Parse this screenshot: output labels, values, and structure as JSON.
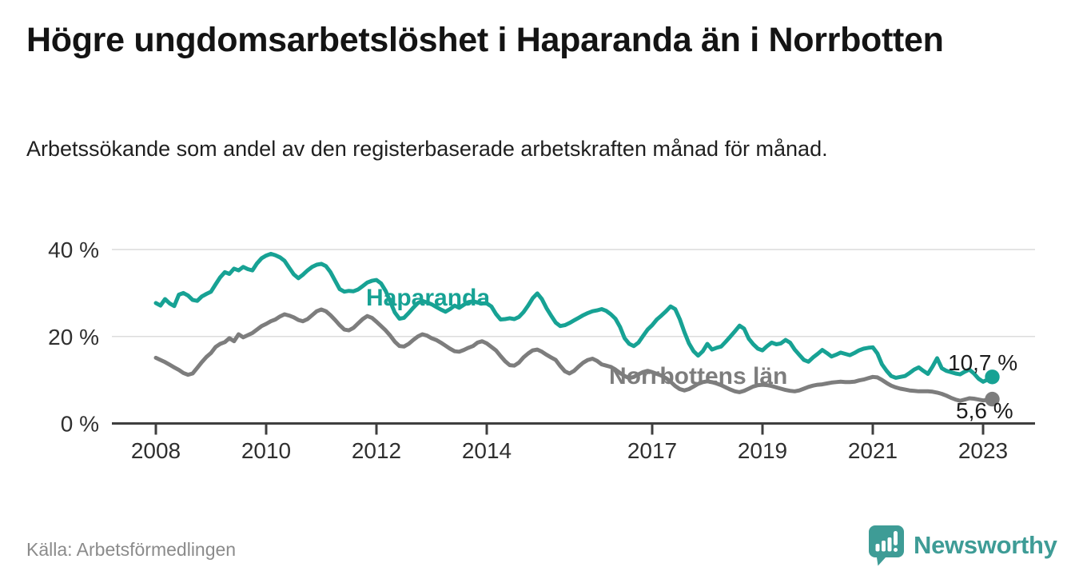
{
  "header": {
    "title": "Högre ungdomsarbetslöshet i Haparanda än i Norrbotten",
    "subtitle": "Arbetssökande som andel av den registerbaserade arbetskraften månad för månad."
  },
  "chart_data": {
    "type": "line",
    "unit": "%",
    "frequency": "monthly",
    "start": "2008-01",
    "end": "2023-03",
    "ylim": [
      0,
      44
    ],
    "grid": "horizontal",
    "y_axis": {
      "ticks": [
        {
          "value": 0,
          "label": "0 %"
        },
        {
          "value": 20,
          "label": "20 %"
        },
        {
          "value": 40,
          "label": "40 %"
        }
      ]
    },
    "x_axis": {
      "ticks": [
        {
          "year": 2008,
          "label": "2008"
        },
        {
          "year": 2010,
          "label": "2010"
        },
        {
          "year": 2012,
          "label": "2012"
        },
        {
          "year": 2014,
          "label": "2014"
        },
        {
          "year": 2017,
          "label": "2017"
        },
        {
          "year": 2019,
          "label": "2019"
        },
        {
          "year": 2021,
          "label": "2021"
        },
        {
          "year": 2023,
          "label": "2023"
        }
      ]
    },
    "series": [
      {
        "name": "Haparanda",
        "color": "#17a294",
        "end_label": "10,7 %",
        "last_value": 10.7,
        "values": [
          27.7,
          27.1,
          28.6,
          27.6,
          27.0,
          29.6,
          30.0,
          29.4,
          28.4,
          28.2,
          29.2,
          29.8,
          30.3,
          32.0,
          33.6,
          34.8,
          34.4,
          35.6,
          35.2,
          36.0,
          35.5,
          35.2,
          36.8,
          38.0,
          38.6,
          39.0,
          38.7,
          38.2,
          37.4,
          35.8,
          34.3,
          33.4,
          34.2,
          35.2,
          36.0,
          36.5,
          36.7,
          36.2,
          34.8,
          32.8,
          30.9,
          30.3,
          30.5,
          30.4,
          30.8,
          31.6,
          32.4,
          32.8,
          33.0,
          32.2,
          30.5,
          28.0,
          25.5,
          24.1,
          24.3,
          25.4,
          26.6,
          27.7,
          28.2,
          27.8,
          27.4,
          26.8,
          26.2,
          25.7,
          26.3,
          27.1,
          26.6,
          27.3,
          27.9,
          28.1,
          27.8,
          27.6,
          27.6,
          26.9,
          25.2,
          23.9,
          24.0,
          24.2,
          24.0,
          24.5,
          25.6,
          27.1,
          28.8,
          29.9,
          28.6,
          26.5,
          24.8,
          23.2,
          22.4,
          22.6,
          23.1,
          23.7,
          24.3,
          24.9,
          25.4,
          25.8,
          26.0,
          26.3,
          25.9,
          25.1,
          24.1,
          22.2,
          19.6,
          18.3,
          17.8,
          18.6,
          20.1,
          21.6,
          22.6,
          23.9,
          24.8,
          25.8,
          26.9,
          26.3,
          24.0,
          21.0,
          18.4,
          16.6,
          15.6,
          16.6,
          18.3,
          17.0,
          17.4,
          17.7,
          18.8,
          20.0,
          21.2,
          22.5,
          21.8,
          19.5,
          18.2,
          17.2,
          16.8,
          17.8,
          18.6,
          18.2,
          18.4,
          19.2,
          18.6,
          17.0,
          15.8,
          14.6,
          14.2,
          15.2,
          16.0,
          16.9,
          16.2,
          15.4,
          15.8,
          16.3,
          16.0,
          15.7,
          16.2,
          16.8,
          17.2,
          17.4,
          17.5,
          16.1,
          13.6,
          12.1,
          10.9,
          10.5,
          10.7,
          10.9,
          11.6,
          12.4,
          12.9,
          12.1,
          11.4,
          13.1,
          15.0,
          12.7,
          12.1,
          11.8,
          11.5,
          11.3,
          11.9,
          12.4,
          11.5,
          10.3,
          9.6,
          10.1,
          10.7
        ]
      },
      {
        "name": "Norrbottens län",
        "color": "#7d7d7d",
        "end_label": "5,6 %",
        "last_value": 5.6,
        "values": [
          15.1,
          14.6,
          14.1,
          13.5,
          12.9,
          12.3,
          11.6,
          11.2,
          11.5,
          12.8,
          14.1,
          15.3,
          16.2,
          17.6,
          18.3,
          18.7,
          19.6,
          18.9,
          20.5,
          19.8,
          20.3,
          20.8,
          21.6,
          22.4,
          22.9,
          23.5,
          23.9,
          24.6,
          25.1,
          24.8,
          24.4,
          23.8,
          23.5,
          24.0,
          24.9,
          25.8,
          26.2,
          25.8,
          24.9,
          23.8,
          22.6,
          21.6,
          21.4,
          22.0,
          23.0,
          24.0,
          24.7,
          24.3,
          23.4,
          22.4,
          21.4,
          20.2,
          18.8,
          17.8,
          17.7,
          18.3,
          19.2,
          20.0,
          20.5,
          20.2,
          19.6,
          19.2,
          18.6,
          17.9,
          17.2,
          16.6,
          16.5,
          16.9,
          17.4,
          17.8,
          18.6,
          18.9,
          18.4,
          17.6,
          16.8,
          15.5,
          14.3,
          13.4,
          13.3,
          14.0,
          15.2,
          16.1,
          16.8,
          17.0,
          16.5,
          15.8,
          15.2,
          14.6,
          13.2,
          12.0,
          11.5,
          12.1,
          13.1,
          14.0,
          14.6,
          14.9,
          14.4,
          13.6,
          13.3,
          13.0,
          12.4,
          11.6,
          10.9,
          10.4,
          10.7,
          11.3,
          11.8,
          12.1,
          11.8,
          11.4,
          11.0,
          10.4,
          9.6,
          8.6,
          7.9,
          7.6,
          7.9,
          8.5,
          9.1,
          9.5,
          9.7,
          9.5,
          9.2,
          8.8,
          8.3,
          7.8,
          7.4,
          7.2,
          7.5,
          8.0,
          8.5,
          8.8,
          8.9,
          8.8,
          8.6,
          8.3,
          8.0,
          7.7,
          7.5,
          7.4,
          7.6,
          8.0,
          8.4,
          8.7,
          8.9,
          9.0,
          9.2,
          9.4,
          9.5,
          9.6,
          9.5,
          9.5,
          9.6,
          9.9,
          10.1,
          10.4,
          10.7,
          10.6,
          10.0,
          9.3,
          8.7,
          8.3,
          8.0,
          7.8,
          7.6,
          7.5,
          7.4,
          7.4,
          7.4,
          7.3,
          7.1,
          6.8,
          6.4,
          5.9,
          5.5,
          5.2,
          5.5,
          5.8,
          5.7,
          5.5,
          5.3,
          5.4,
          5.6
        ]
      }
    ],
    "colors": {
      "grid": "#dcdcdc",
      "axis": "#3e3e3e",
      "haparanda": "#17a294",
      "norrbotten": "#7d7d7d"
    }
  },
  "footer": {
    "source": "Källa: Arbetsförmedlingen",
    "brand": "Newsworthy",
    "brand_color": "#3e9c96"
  }
}
